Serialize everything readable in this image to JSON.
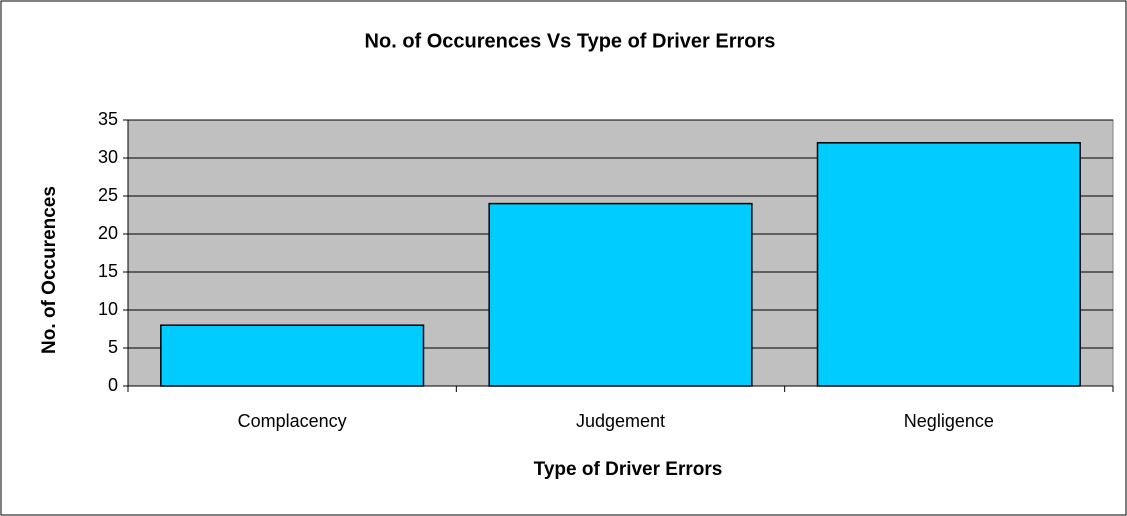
{
  "chart_data": {
    "type": "bar",
    "title": "No. of Occurences Vs Type of Driver Errors",
    "x_label": "Type of Driver Errors",
    "y_label": "No. of Occurences",
    "categories": [
      "Complacency",
      "Judgement",
      "Negligence"
    ],
    "values": [
      8,
      24,
      32
    ],
    "color": "#00ccff",
    "ylim": [
      0,
      35
    ],
    "yticks": [
      0,
      5,
      10,
      15,
      20,
      25,
      30,
      35
    ],
    "grid": true
  }
}
